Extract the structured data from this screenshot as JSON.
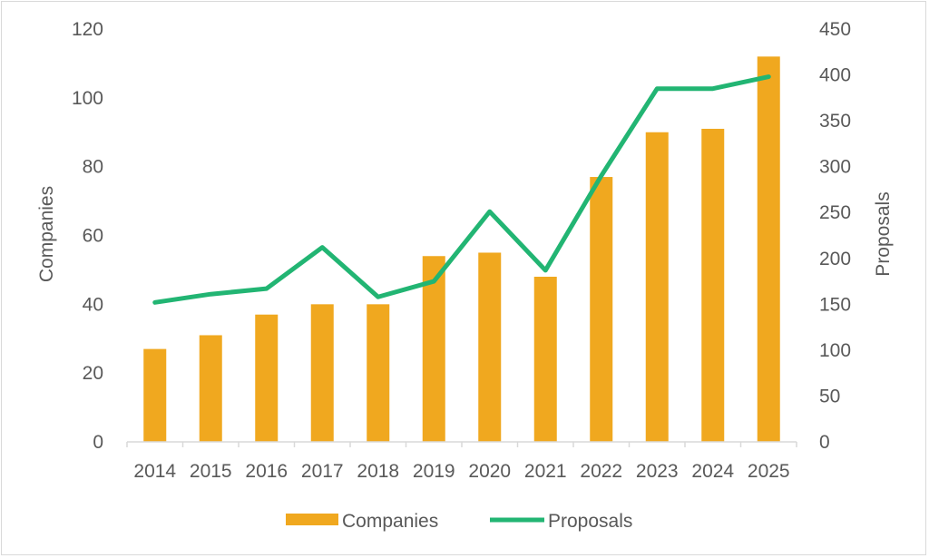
{
  "chart_data": {
    "type": "bar",
    "title": "",
    "categories": [
      "2014",
      "2015",
      "2016",
      "2017",
      "2018",
      "2019",
      "2020",
      "2021",
      "2022",
      "2023",
      "2024",
      "2025"
    ],
    "series": [
      {
        "name": "Companies",
        "kind": "bar",
        "axis": "left",
        "color": "#f0a81f",
        "values": [
          27,
          31,
          37,
          40,
          40,
          54,
          55,
          48,
          77,
          90,
          91,
          112
        ]
      },
      {
        "name": "Proposals",
        "kind": "line",
        "axis": "right",
        "color": "#22b573",
        "values": [
          152,
          161,
          167,
          212,
          158,
          175,
          251,
          187,
          290,
          385,
          385,
          398
        ]
      }
    ],
    "ylabel": "Companies",
    "y2label": "Proposals",
    "ylim": [
      0,
      120
    ],
    "y2lim": [
      0,
      450
    ],
    "yticks": [
      "0",
      "20",
      "40",
      "60",
      "80",
      "100",
      "120"
    ],
    "y2ticks": [
      "0",
      "50",
      "100",
      "150",
      "200",
      "250",
      "300",
      "350",
      "400",
      "450"
    ],
    "grid": false,
    "legend_position": "bottom"
  }
}
